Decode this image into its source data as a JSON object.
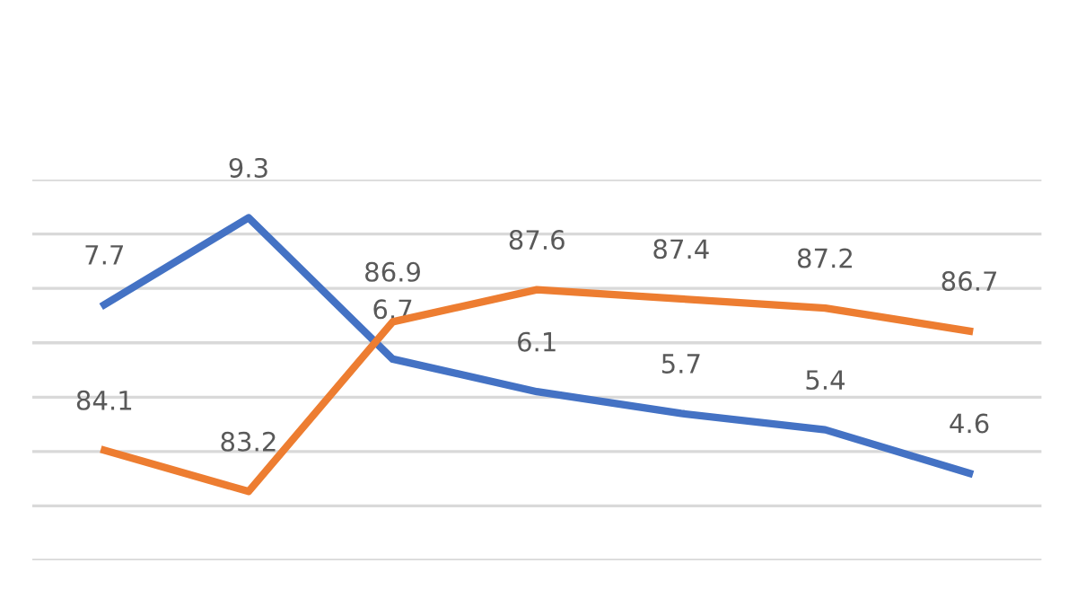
{
  "chart_data": [
    {
      "type": "line",
      "categories": [
        null,
        null,
        null,
        null,
        null,
        null,
        null
      ],
      "series": [
        {
          "color": "#4472c4",
          "values": [
            7.7,
            9.3,
            6.7,
            6.1,
            5.7,
            5.4,
            4.6
          ]
        }
      ],
      "ylim": [
        3,
        10
      ],
      "yticks": [
        {
          "value": 3,
          "label": null
        },
        {
          "value": 4,
          "label": null
        },
        {
          "value": 5,
          "label": null
        },
        {
          "value": 6,
          "label": null
        },
        {
          "value": 7,
          "label": null
        },
        {
          "value": 8,
          "label": null
        },
        {
          "value": 9,
          "label": null
        },
        {
          "value": 10,
          "label": null
        }
      ],
      "grid": "y",
      "data_labels": true,
      "marker": "none",
      "line_style": "solid"
    },
    {
      "type": "line",
      "categories": [
        null,
        null,
        null,
        null,
        null,
        null,
        null
      ],
      "series": [
        {
          "color": "#ed7d31",
          "values": [
            84.1,
            83.2,
            86.9,
            87.6,
            87.4,
            87.2,
            86.7
          ]
        }
      ],
      "ylim": [
        81.7,
        90
      ],
      "data_labels": true,
      "marker": "none",
      "line_style": "solid"
    }
  ]
}
